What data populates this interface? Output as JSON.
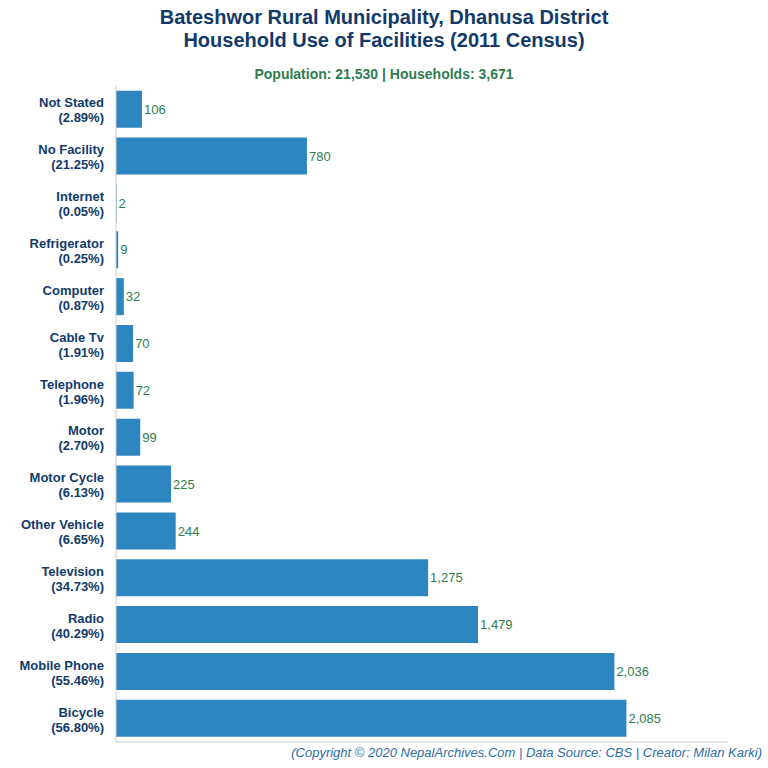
{
  "chart_data": {
    "type": "bar",
    "orientation": "horizontal",
    "title": "Bateshwor Rural Municipality, Dhanusa District\nHousehold Use of Facilities (2011 Census)",
    "subtitle": "Population: 21,530 | Households: 3,671",
    "caption": "(Copyright © 2020 NepalArchives.Com | Data Source: CBS | Creator: Milan Karki)",
    "categories": [
      "Not Stated (2.89%)",
      "No Facility (21.25%)",
      "Internet (0.05%)",
      "Refrigerator (0.25%)",
      "Computer (0.87%)",
      "Cable Tv (1.91%)",
      "Telephone (1.96%)",
      "Motor (2.70%)",
      "Motor Cycle (6.13%)",
      "Other Vehicle (6.65%)",
      "Television (34.73%)",
      "Radio (40.29%)",
      "Mobile Phone (55.46%)",
      "Bicycle (56.80%)"
    ],
    "values": [
      106,
      780,
      2,
      9,
      32,
      70,
      72,
      99,
      225,
      244,
      1275,
      1479,
      2036,
      2085
    ],
    "value_labels": [
      "106",
      "780",
      "2",
      "9",
      "32",
      "70",
      "72",
      "99",
      "225",
      "244",
      "1,275",
      "1,479",
      "2,036",
      "2,085"
    ],
    "color": "#2e86c1",
    "xlim": [
      0,
      2500
    ],
    "data_labels": true,
    "tick_labels": "y",
    "grid": false
  }
}
